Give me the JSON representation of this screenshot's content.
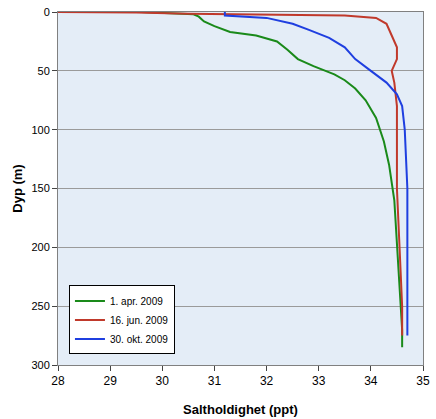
{
  "chart_data": {
    "type": "line",
    "x_label": "Saltholdighet (ppt)",
    "y_label": "Dyp (m)",
    "xlim": [
      28,
      35
    ],
    "xticks": [
      28,
      29,
      30,
      31,
      32,
      33,
      34,
      35
    ],
    "ylim": [
      300,
      0
    ],
    "yticks": [
      0,
      50,
      100,
      150,
      200,
      250,
      300
    ],
    "grid": "y",
    "legend": "lower left",
    "series": [
      {
        "name": "1. apr. 2009",
        "color": "#1a8a1a",
        "x": [
          29.6,
          30.6,
          30.7,
          30.8,
          31.0,
          31.3,
          31.8,
          32.2,
          32.4,
          32.6,
          32.9,
          33.3,
          33.5,
          33.7,
          33.9,
          34.1,
          34.25,
          34.35,
          34.45,
          34.5,
          34.55,
          34.6,
          34.6
        ],
        "y": [
          0,
          2,
          4,
          8,
          12,
          17,
          20,
          25,
          32,
          40,
          46,
          53,
          58,
          65,
          75,
          90,
          110,
          130,
          160,
          200,
          240,
          270,
          285
        ]
      },
      {
        "name": "16. jun. 2009",
        "color": "#c0392b",
        "x": [
          28.0,
          29.5,
          30.5,
          31.5,
          32.5,
          33.5,
          34.1,
          34.3,
          34.4,
          34.45,
          34.5,
          34.5,
          34.4,
          34.45,
          34.5,
          34.5,
          34.5,
          34.55,
          34.6,
          34.6
        ],
        "y": [
          0,
          0.5,
          1.5,
          2,
          2.5,
          3,
          5,
          10,
          20,
          25,
          30,
          40,
          50,
          60,
          80,
          100,
          150,
          200,
          250,
          275
        ]
      },
      {
        "name": "30. okt. 2009",
        "color": "#1f3fe0",
        "x": [
          31.2,
          31.2,
          32.0,
          32.5,
          32.8,
          33.2,
          33.5,
          33.7,
          34.0,
          34.3,
          34.5,
          34.6,
          34.65,
          34.7,
          34.7,
          34.7,
          34.7
        ],
        "y": [
          0,
          3,
          5,
          10,
          15,
          22,
          30,
          40,
          50,
          60,
          70,
          80,
          100,
          150,
          200,
          250,
          275
        ]
      }
    ]
  }
}
